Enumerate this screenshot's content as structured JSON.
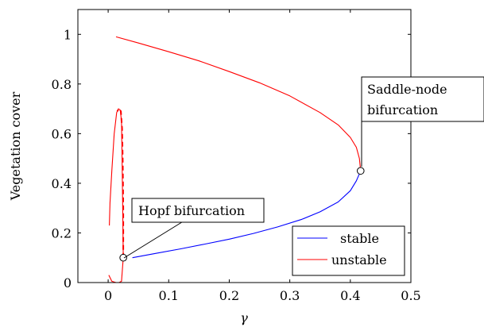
{
  "chart_data": {
    "type": "line",
    "xlabel": "γ",
    "ylabel": "Vegetation cover",
    "xlim": [
      -0.05,
      0.5
    ],
    "ylim": [
      0,
      1.1
    ],
    "xticks": [
      0,
      0.1,
      0.2,
      0.3,
      0.4,
      0.5
    ],
    "xtick_labels": [
      "0",
      "0.1",
      "0.2",
      "0.3",
      "0.4",
      "0.5"
    ],
    "yticks": [
      0,
      0.2,
      0.4,
      0.6,
      0.8,
      1
    ],
    "ytick_labels": [
      "0",
      "0.2",
      "0.4",
      "0.6",
      "0.8",
      "1"
    ],
    "legend": {
      "position": "bottom-right",
      "entries": [
        {
          "label": "stable",
          "color": "#0000ff"
        },
        {
          "label": "unstable",
          "color": "#ff0000"
        }
      ]
    },
    "series": [
      {
        "name": "stable",
        "color": "#0000ff",
        "style": "solid",
        "points": [
          [
            0.04,
            0.1
          ],
          [
            0.08,
            0.118
          ],
          [
            0.12,
            0.136
          ],
          [
            0.16,
            0.155
          ],
          [
            0.2,
            0.175
          ],
          [
            0.24,
            0.198
          ],
          [
            0.28,
            0.224
          ],
          [
            0.32,
            0.255
          ],
          [
            0.35,
            0.285
          ],
          [
            0.38,
            0.325
          ],
          [
            0.4,
            0.37
          ],
          [
            0.41,
            0.41
          ],
          [
            0.417,
            0.45
          ]
        ]
      },
      {
        "name": "unstable",
        "color": "#ff0000",
        "style": "solid",
        "points": [
          [
            0.013,
            0.99
          ],
          [
            0.05,
            0.965
          ],
          [
            0.1,
            0.93
          ],
          [
            0.15,
            0.893
          ],
          [
            0.2,
            0.85
          ],
          [
            0.25,
            0.805
          ],
          [
            0.3,
            0.752
          ],
          [
            0.35,
            0.685
          ],
          [
            0.38,
            0.635
          ],
          [
            0.4,
            0.585
          ],
          [
            0.41,
            0.545
          ],
          [
            0.415,
            0.5
          ],
          [
            0.417,
            0.45
          ]
        ]
      },
      {
        "name": "unstable",
        "color": "#ff0000",
        "style": "solid",
        "points": [
          [
            0.001,
            0.03
          ],
          [
            0.006,
            0.005
          ],
          [
            0.013,
            0.0
          ],
          [
            0.018,
            0.0
          ],
          [
            0.022,
            0.005
          ],
          [
            0.025,
            0.1
          ],
          [
            0.024,
            0.3
          ],
          [
            0.023,
            0.5
          ],
          [
            0.022,
            0.65
          ],
          [
            0.02,
            0.695
          ],
          [
            0.017,
            0.7
          ],
          [
            0.014,
            0.685
          ],
          [
            0.01,
            0.6
          ],
          [
            0.006,
            0.45
          ],
          [
            0.003,
            0.32
          ],
          [
            0.002,
            0.23
          ]
        ]
      },
      {
        "name": "unstable",
        "color": "#ff0000",
        "style": "dashed",
        "points": [
          [
            0.025,
            0.1
          ],
          [
            0.025,
            0.3
          ],
          [
            0.024,
            0.5
          ],
          [
            0.023,
            0.62
          ],
          [
            0.021,
            0.69
          ],
          [
            0.018,
            0.7
          ],
          [
            0.015,
            0.69
          ]
        ]
      }
    ],
    "markers": [
      {
        "name": "hopf-point",
        "x": 0.025,
        "y": 0.1
      },
      {
        "name": "saddle-node-point",
        "x": 0.417,
        "y": 0.45
      }
    ],
    "annotations": [
      {
        "name": "hopf-annotation",
        "lines": [
          "Hopf bifurcation"
        ]
      },
      {
        "name": "saddle-node-annotation",
        "lines": [
          "Saddle-node",
          "bifurcation"
        ]
      }
    ]
  }
}
